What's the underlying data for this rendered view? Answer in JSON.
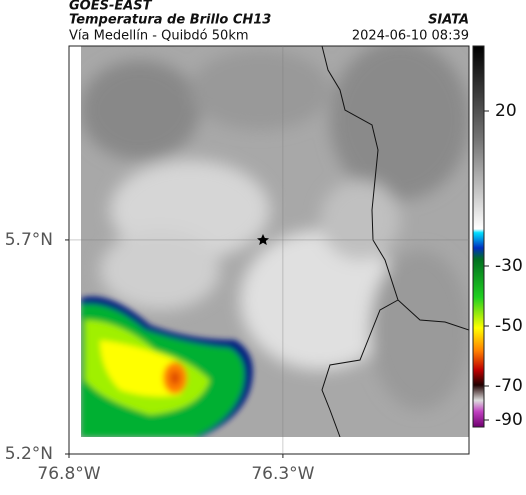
{
  "header": {
    "title": "GOES-EAST",
    "subtitle": "Temperatura de Brillo CH13",
    "source": "SIATA",
    "route": "Vía Medellín - Quibdó 50km",
    "timestamp": "2024-06-10 08:39"
  },
  "map": {
    "xlim": [
      -76.8,
      -75.865
    ],
    "ylim": [
      5.2,
      6.153
    ],
    "xticks": [
      {
        "value": -76.8,
        "label": "76.8°W"
      },
      {
        "value": -76.3,
        "label": "76.3°W"
      }
    ],
    "yticks": [
      {
        "value": 5.2,
        "label": "5.2°N"
      },
      {
        "value": 5.7,
        "label": "5.7°N"
      }
    ],
    "grid": true
  },
  "colorbar": {
    "ticks": [
      20,
      -30,
      -50,
      -70,
      -90
    ]
  }
}
